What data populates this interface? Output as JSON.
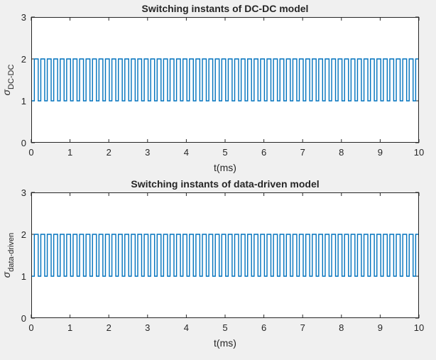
{
  "figure": {
    "background": "#f0f0f0"
  },
  "chart_data": [
    {
      "type": "line",
      "title": "Switching instants of DC-DC model",
      "xlabel": "t(ms)",
      "ylabel_symbol": "σ",
      "ylabel_subscript": "DC-DC",
      "xlim": [
        0,
        10
      ],
      "ylim": [
        0,
        3
      ],
      "xticks": [
        "0",
        "1",
        "2",
        "3",
        "4",
        "5",
        "6",
        "7",
        "8",
        "9",
        "10"
      ],
      "yticks": [
        "0",
        "1",
        "2",
        "3"
      ],
      "grid": false,
      "series": [
        {
          "color": "#0072bd",
          "signal": "square",
          "low": 1,
          "high": 2,
          "x_start": 0,
          "x_end": 10,
          "period": 0.1667,
          "duty": 0.6,
          "initial_state": "low",
          "first_rise": 0.08
        }
      ]
    },
    {
      "type": "line",
      "title": "Switching instants of data-driven model",
      "xlabel": "t(ms)",
      "ylabel_symbol": "σ",
      "ylabel_subscript": "data-driven",
      "xlim": [
        0,
        10
      ],
      "ylim": [
        0,
        3
      ],
      "xticks": [
        "0",
        "1",
        "2",
        "3",
        "4",
        "5",
        "6",
        "7",
        "8",
        "9",
        "10"
      ],
      "yticks": [
        "0",
        "1",
        "2",
        "3"
      ],
      "grid": false,
      "series": [
        {
          "color": "#0072bd",
          "signal": "square",
          "low": 1,
          "high": 2,
          "x_start": 0,
          "x_end": 10,
          "period": 0.1667,
          "duty": 0.6,
          "initial_state": "low",
          "first_rise": 0.08
        }
      ]
    }
  ]
}
